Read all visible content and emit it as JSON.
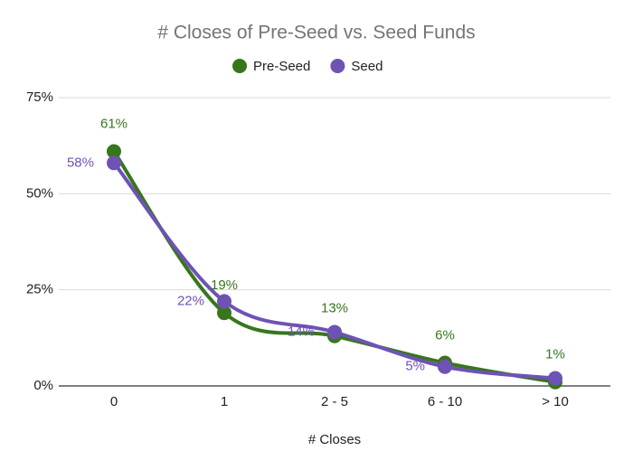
{
  "chart_data": {
    "type": "line",
    "title": "# Closes of Pre-Seed vs. Seed Funds",
    "x_label": "# Closes",
    "categories": [
      "0",
      "1",
      "2 - 5",
      "6 - 10",
      "> 10"
    ],
    "series": [
      {
        "name": "Pre-Seed",
        "color": "#38761d",
        "values": [
          61,
          19,
          13,
          6,
          1
        ],
        "value_labels": [
          "61%",
          "19%",
          "13%",
          "6%",
          "1%"
        ]
      },
      {
        "name": "Seed",
        "color": "#6f52b5",
        "values": [
          58,
          22,
          14,
          5,
          2
        ],
        "value_labels": [
          "58%",
          "22%",
          "14%",
          "5%",
          null
        ]
      }
    ],
    "ylim": [
      0,
      75
    ],
    "yticks": [
      {
        "value": 0,
        "label": "0%"
      },
      {
        "value": 25,
        "label": "25%"
      },
      {
        "value": 50,
        "label": "50%"
      },
      {
        "value": 75,
        "label": "75%"
      }
    ],
    "grid": true,
    "legend": "top",
    "smooth": true
  }
}
